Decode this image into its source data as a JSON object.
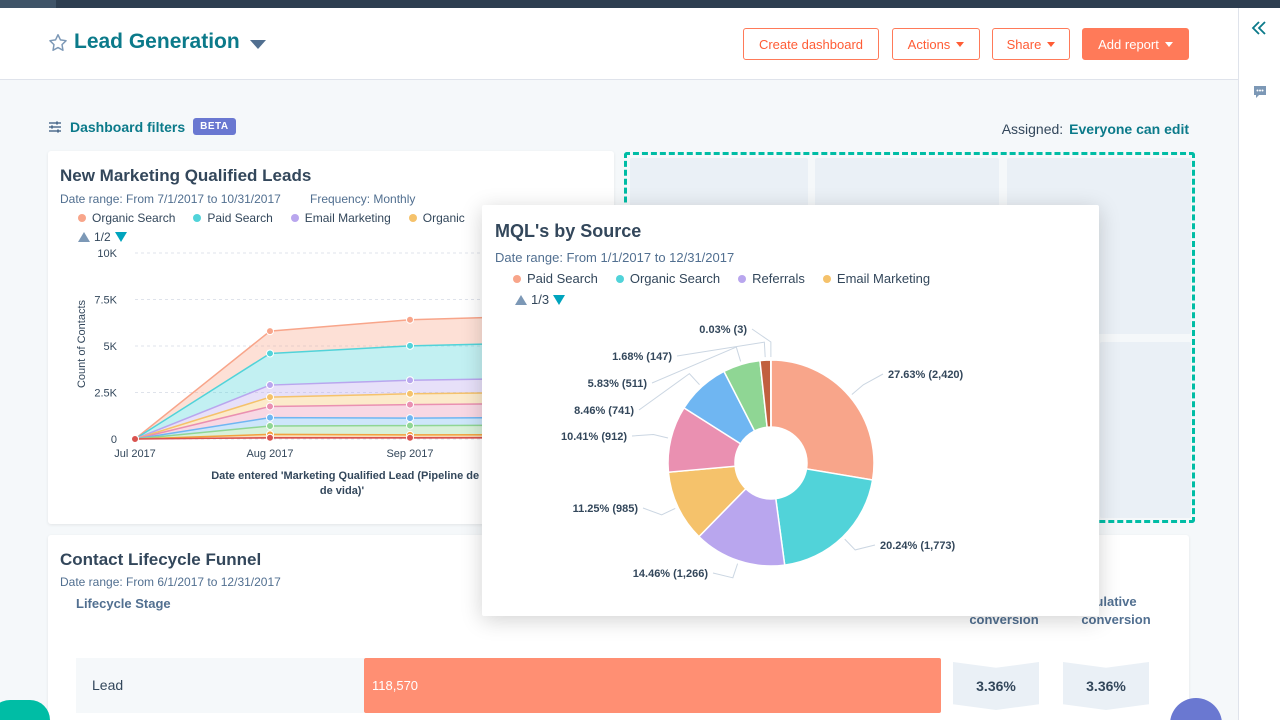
{
  "header": {
    "title": "Lead Generation",
    "buttons": {
      "create_dashboard": "Create dashboard",
      "actions": "Actions",
      "share": "Share",
      "add_report": "Add report"
    }
  },
  "filters": {
    "label": "Dashboard filters",
    "badge": "BETA",
    "assigned_label": "Assigned:",
    "assigned_value": "Everyone can edit"
  },
  "mql_card": {
    "title": "New Marketing Qualified Leads",
    "date_range": "Date range: From 7/1/2017 to 10/31/2017",
    "frequency": "Frequency: Monthly",
    "legend": [
      {
        "label": "Organic Search",
        "color": "#f8a58a"
      },
      {
        "label": "Paid Search",
        "color": "#51d3d9"
      },
      {
        "label": "Email Marketing",
        "color": "#b9a6ee"
      },
      {
        "label": "Organic",
        "color": "#f5c26b"
      }
    ],
    "pager": "1/2"
  },
  "funnel_card": {
    "title": "Contact Lifecycle Funnel",
    "date_range": "Date range: From 6/1/2017 to 12/31/2017",
    "col_stage": "Lifecycle Stage",
    "col_conversion": "conversion",
    "col_cumulative_1": "ulative",
    "col_cumulative_2": "conversion",
    "row_label": "Lead",
    "row_value": "118,570",
    "conversion": "3.36%",
    "cumulative": "3.36%"
  },
  "popup": {
    "title": "MQL's by Source",
    "date_range": "Date range: From 1/1/2017 to 12/31/2017",
    "legend": [
      {
        "label": "Paid Search",
        "color": "#f8a58a"
      },
      {
        "label": "Organic Search",
        "color": "#51d3d9"
      },
      {
        "label": "Referrals",
        "color": "#b9a6ee"
      },
      {
        "label": "Email Marketing",
        "color": "#f5c26b"
      }
    ],
    "pager": "1/3"
  },
  "chart_data": [
    {
      "type": "area",
      "x": [
        "Jul 2017",
        "Aug 2017",
        "Sep 2017"
      ],
      "ylabel": "Count of Contacts",
      "xlabel": "Date entered 'Marketing Qualified Lead (Pipeline de etap de vida)'",
      "y_ticks": [
        "0",
        "2.5K",
        "5K",
        "7.5K",
        "10K"
      ],
      "ylim": [
        0,
        10000
      ],
      "series": [
        {
          "name": "Organic Search",
          "color": "#f8a58a",
          "values": [
            0,
            1200,
            1400
          ]
        },
        {
          "name": "Paid Search",
          "color": "#51d3d9",
          "values": [
            0,
            1700,
            1850
          ]
        },
        {
          "name": "Email Marketing",
          "color": "#b9a6ee",
          "values": [
            0,
            650,
            730
          ]
        },
        {
          "name": "Organic",
          "color": "#f5c26b",
          "values": [
            0,
            500,
            580
          ]
        },
        {
          "color": "#ea90b1",
          "values": [
            0,
            600,
            730
          ]
        },
        {
          "color": "#6fb6f2",
          "values": [
            0,
            450,
            400
          ]
        },
        {
          "color": "#8fd694",
          "values": [
            0,
            450,
            500
          ]
        },
        {
          "color": "#f2a13e",
          "values": [
            0,
            180,
            150
          ]
        },
        {
          "color": "#d9534f",
          "values": [
            0,
            70,
            70
          ]
        }
      ]
    },
    {
      "type": "pie",
      "slices": [
        {
          "label": "27.63% (2,420)",
          "value": 2420,
          "color": "#f8a58a"
        },
        {
          "label": "20.24% (1,773)",
          "value": 1773,
          "color": "#51d3d9"
        },
        {
          "label": "14.46% (1,266)",
          "value": 1266,
          "color": "#b9a6ee"
        },
        {
          "label": "11.25% (985)",
          "value": 985,
          "color": "#f5c26b"
        },
        {
          "label": "10.41% (912)",
          "value": 912,
          "color": "#ea90b1"
        },
        {
          "label": "8.46% (741)",
          "value": 741,
          "color": "#6fb6f2"
        },
        {
          "label": "5.83% (511)",
          "value": 511,
          "color": "#8fd694"
        },
        {
          "label": "1.68% (147)",
          "value": 147,
          "color": "#c1603f"
        },
        {
          "label": "0.03% (3)",
          "value": 3,
          "color": "#6b4f3a"
        }
      ]
    }
  ]
}
